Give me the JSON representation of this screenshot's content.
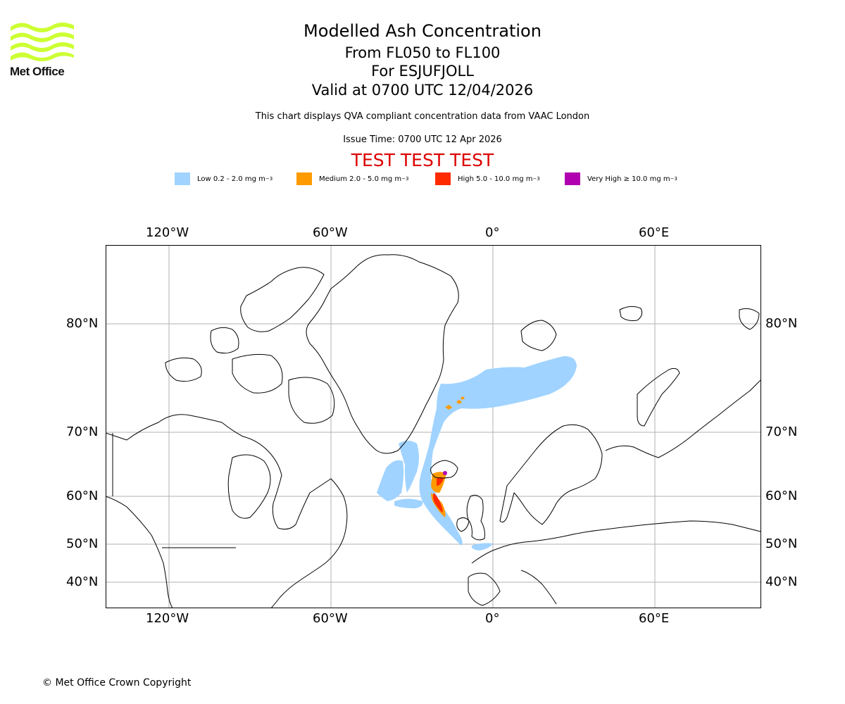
{
  "logo": {
    "text": "Met Office",
    "color": "#ccff33"
  },
  "titles": {
    "main": "Modelled Ash Concentration",
    "levels": "From FL050 to FL100",
    "volcano": "For ESJUFJOLL",
    "valid": "Valid at 0700 UTC 12/04/2026",
    "description": "This chart displays QVA compliant concentration data from VAAC London",
    "issue": "Issue Time: 0700 UTC 12 Apr 2026",
    "test": "TEST TEST TEST",
    "test_color": "#dd0000"
  },
  "legend": [
    {
      "label": "Low 0.2 - 2.0 mg m",
      "sup": "−3",
      "color": "#a0d3ff"
    },
    {
      "label": "Medium 2.0 - 5.0 mg m",
      "sup": "−3",
      "color": "#ff9a00"
    },
    {
      "label": "High 5.0 - 10.0 mg m",
      "sup": "−3",
      "color": "#ff2a00"
    },
    {
      "label": "Very High  ≥  10.0 mg m",
      "sup": "−3",
      "color": "#b000b0"
    }
  ],
  "axes": {
    "longitude_labels": [
      "120°W",
      "60°W",
      "0°",
      "60°E"
    ],
    "latitude_labels": [
      "80°N",
      "70°N",
      "60°N",
      "50°N",
      "40°N"
    ]
  },
  "map": {
    "projection": "polar-stereographic",
    "gridlines": true,
    "grid_color": "#b0b0b0",
    "coast_color": "#000000",
    "ash_colors": {
      "low": "#a0d3ff",
      "medium": "#ff9a00",
      "high": "#ff2a00",
      "very_high": "#b000b0"
    }
  },
  "footer": {
    "copyright": "© Met Office Crown Copyright"
  }
}
